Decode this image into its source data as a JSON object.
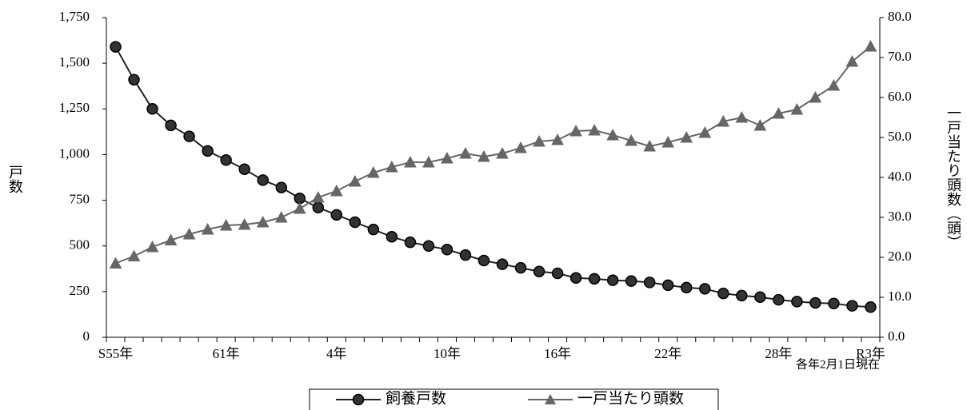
{
  "chart_data": {
    "type": "line",
    "categories": [
      "S55年",
      null,
      null,
      null,
      null,
      null,
      "61年",
      null,
      null,
      null,
      null,
      null,
      "4年",
      null,
      null,
      null,
      null,
      null,
      "10年",
      null,
      null,
      null,
      null,
      null,
      "16年",
      null,
      null,
      null,
      null,
      null,
      "22年",
      null,
      null,
      null,
      null,
      null,
      "28年",
      null,
      null,
      null,
      null,
      "R3年"
    ],
    "series": [
      {
        "name": "飼養戸数",
        "color": "#222222",
        "marker": "circle",
        "values": [
          1590,
          1410,
          1250,
          1160,
          1100,
          1020,
          970,
          920,
          860,
          820,
          760,
          710,
          670,
          630,
          590,
          550,
          520,
          500,
          480,
          450,
          420,
          400,
          380,
          360,
          350,
          325,
          320,
          312,
          308,
          300,
          285,
          272,
          265,
          240,
          228,
          220,
          205,
          195,
          188,
          185,
          172,
          165
        ]
      },
      {
        "name": "一戸当たり頭数",
        "color": "#666666",
        "marker": "triangle",
        "axis": "y2",
        "values": [
          18.5,
          20.3,
          22.6,
          24.3,
          25.8,
          27.0,
          28.0,
          28.2,
          28.8,
          30.0,
          32.2,
          35.0,
          36.6,
          39.0,
          41.2,
          42.6,
          43.8,
          43.8,
          44.8,
          46.0,
          45.2,
          46.0,
          47.4,
          49.0,
          49.4,
          51.6,
          51.8,
          50.6,
          49.2,
          47.8,
          48.8,
          50.0,
          51.2,
          54.0,
          55.0,
          53.0,
          56.0,
          57.0,
          60.0,
          63.0,
          69.0,
          72.8
        ]
      }
    ],
    "ylim": [
      0,
      1750
    ],
    "yticks": [
      0,
      250,
      500,
      750,
      {
        "value": 1000,
        "label": "1,000"
      },
      {
        "value": 1250,
        "label": "1,250"
      },
      {
        "value": 1500,
        "label": "1,500"
      },
      {
        "value": 1750,
        "label": "1,750"
      }
    ],
    "y2lim": [
      0,
      80
    ],
    "y2ticks": [
      {
        "value": 0,
        "label": "0.0"
      },
      {
        "value": 10,
        "label": "10.0"
      },
      {
        "value": 20,
        "label": "20.0"
      },
      {
        "value": 30,
        "label": "30.0"
      },
      {
        "value": 40,
        "label": "40.0"
      },
      {
        "value": 50,
        "label": "50.0"
      },
      {
        "value": 60,
        "label": "60.0"
      },
      {
        "value": 70,
        "label": "70.0"
      },
      {
        "value": 80,
        "label": "80.0"
      }
    ],
    "ylabel": "戸数",
    "y2label": "一戸当たり頭数（頭）",
    "annotation": "各年2月1日現在",
    "legend": "bottom",
    "grid": false
  }
}
